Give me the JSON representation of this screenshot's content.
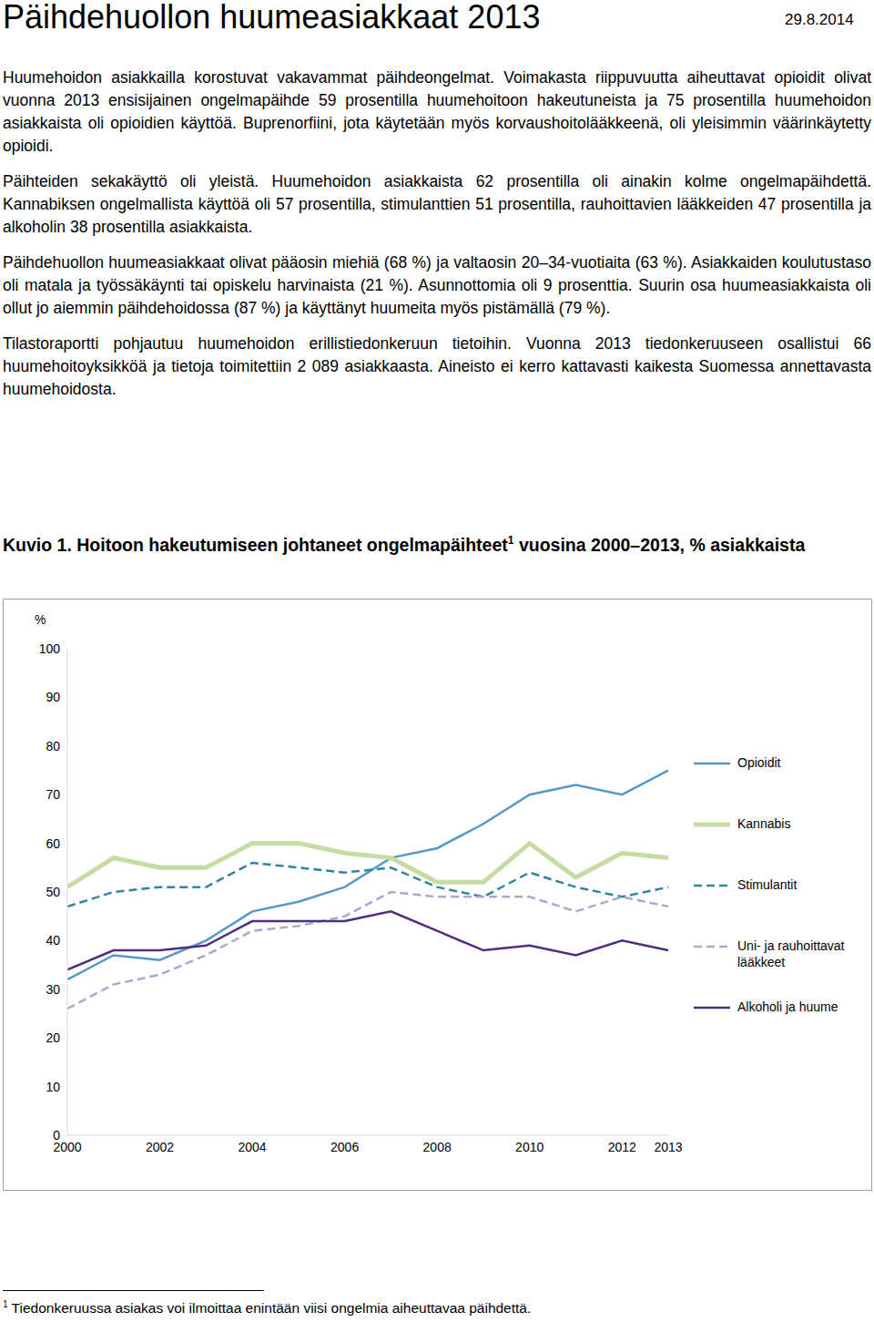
{
  "document": {
    "header": {
      "title": "Päihdehuollon huumeasiakkaat 2013",
      "date": "29.8.2014"
    },
    "paragraphs": [
      "Huumehoidon asiakkailla korostuvat vakavammat päihdeongelmat. Voimakasta riippuvuutta aiheuttavat opioidit olivat vuonna 2013 ensisijainen ongelmapäihde 59 prosentilla huumehoitoon hakeutuneista ja 75 prosentilla huumehoidon asiakkaista oli opioidien käyttöä. Buprenorfiini, jota käytetään myös korvaushoitolääkkeenä, oli yleisimmin väärinkäytetty opioidi.",
      "Päihteiden sekakäyttö oli yleistä. Huumehoidon asiakkaista 62 prosentilla oli ainakin kolme ongelmapäihdettä. Kannabiksen ongelmallista käyttöä oli 57 prosentilla, stimulanttien 51 prosentilla, rauhoittavien lääkkeiden 47 prosentilla ja alkoholin 38 prosentilla asiakkaista.",
      "Päihdehuollon huumeasiakkaat olivat pääosin miehiä (68 %) ja valtaosin 20–34-vuotiaita (63 %). Asiakkaiden koulutustaso oli matala ja työssäkäynti tai opiskelu harvinaista (21 %). Asunnottomia oli 9 prosenttia. Suurin osa huumeasiakkaista oli ollut jo aiemmin päihdehoidossa (87 %) ja käyttänyt huumeita myös pistämällä (79 %).",
      "Tilastoraportti pohjautuu huumehoidon erillistiedonkeruun tietoihin. Vuonna 2013 tiedonkeruuseen osallistui 66 huumehoitoyksikköä ja tietoja toimitettiin 2 089 asiakkaasta. Aineisto ei kerro kattavasti kaikesta Suomessa annettavasta huumehoidosta."
    ],
    "figure": {
      "label": "Kuvio 1.",
      "title": "Hoitoon hakeutumiseen johtaneet ongelmapäihteet",
      "footnote_mark": "1",
      "title_rest": "vuosina 2000–2013, % asiakkaista"
    },
    "footnote": {
      "mark": "1",
      "text": "Tiedonkeruussa asiakas voi ilmoittaa enintään viisi ongelmia aiheuttavaa päihdettä."
    }
  },
  "chart_data": {
    "type": "line",
    "ylabel": "%",
    "x": [
      2000,
      2001,
      2002,
      2003,
      2004,
      2005,
      2006,
      2007,
      2008,
      2009,
      2010,
      2011,
      2012,
      2013
    ],
    "xlim": [
      2000,
      2013
    ],
    "xticks": [
      2000,
      2002,
      2004,
      2006,
      2008,
      2010,
      2012,
      2013
    ],
    "ylim": [
      0,
      100
    ],
    "yticks": [
      0,
      10,
      20,
      30,
      40,
      50,
      60,
      70,
      80,
      90,
      100
    ],
    "grid": false,
    "legend": "right",
    "series": [
      {
        "name": "Opioidit",
        "color": "#5599c8",
        "line_style": "solid",
        "values": [
          32,
          37,
          36,
          40,
          46,
          48,
          51,
          57,
          59,
          64,
          70,
          72,
          70,
          75
        ]
      },
      {
        "name": "Kannabis",
        "color": "#c6dca2",
        "line_style": "solid",
        "values": [
          51,
          57,
          55,
          55,
          60,
          60,
          58,
          57,
          52,
          52,
          60,
          53,
          58,
          57
        ]
      },
      {
        "name": "Stimulantit",
        "color": "#31859c",
        "line_style": "dashed",
        "values": [
          47,
          50,
          51,
          51,
          56,
          55,
          54,
          55,
          51,
          49,
          54,
          51,
          49,
          51
        ]
      },
      {
        "name": "Uni- ja rauhoittavat lääkkeet",
        "color": "#a7a9cf",
        "line_style": "dashed",
        "values": [
          26,
          31,
          33,
          37,
          42,
          43,
          45,
          50,
          49,
          49,
          49,
          46,
          49,
          47
        ]
      },
      {
        "name": "Alkoholi ja huume",
        "color": "#4f2d7f",
        "line_style": "solid",
        "values": [
          34,
          38,
          38,
          39,
          44,
          44,
          44,
          46,
          42,
          38,
          39,
          37,
          40,
          38
        ]
      }
    ]
  }
}
